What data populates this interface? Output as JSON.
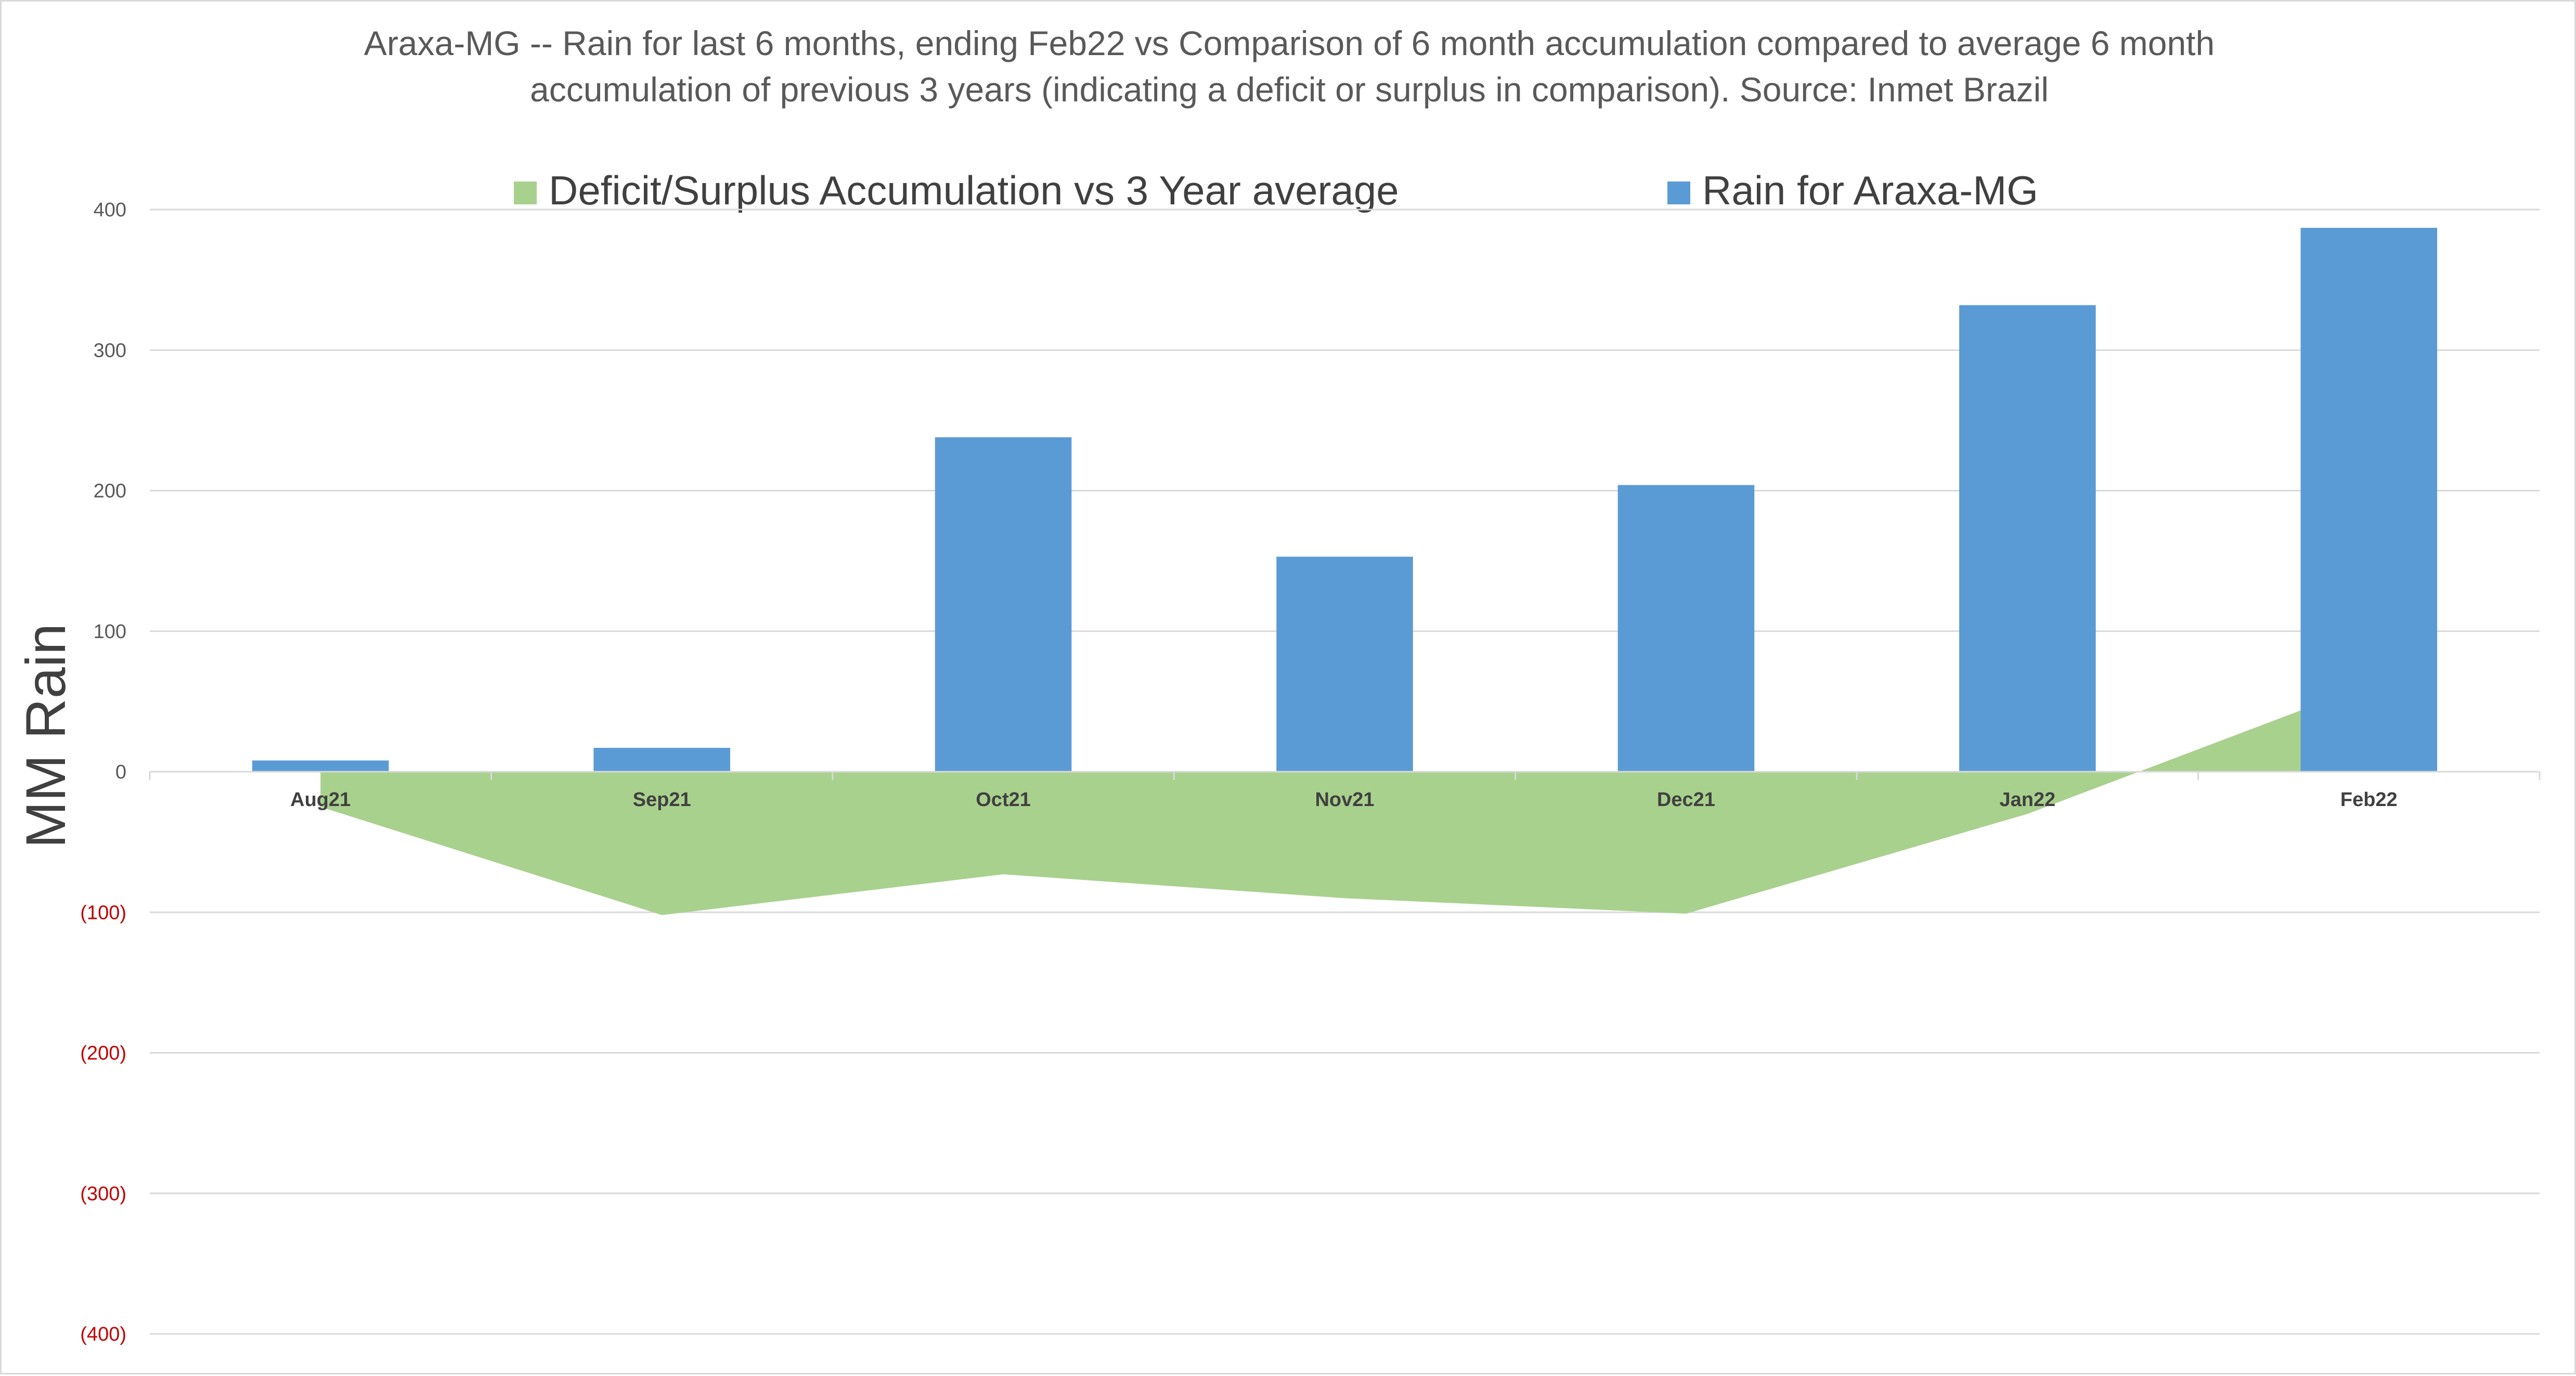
{
  "chart_data": {
    "type": "bar",
    "title_lines": [
      "Araxa-MG -- Rain for last 6 months, ending Feb22  vs Comparison of 6 month accumulation compared to average 6 month",
      "accumulation of previous 3 years  (indicating a deficit or surplus in comparison). Source: Inmet Brazil"
    ],
    "ylabel": "MM Rain",
    "xlabel": "",
    "categories": [
      "Aug21",
      "Sep21",
      "Oct21",
      "Nov21",
      "Dec21",
      "Jan22",
      "Feb22"
    ],
    "ylim": [
      -400,
      400
    ],
    "yticks": [
      400,
      300,
      200,
      100,
      0,
      -100,
      -200,
      -300,
      -400
    ],
    "ytick_labels": [
      "400",
      "300",
      "200",
      "100",
      "0",
      "(100)",
      "(200)",
      "(300)",
      "(400)"
    ],
    "grid": true,
    "legend_position": "top",
    "series": [
      {
        "name": "Deficit/Surplus Accumulation vs 3 Year average",
        "type": "area",
        "color": "#a9d18e",
        "values": [
          -25,
          -102,
          -73,
          -90,
          -101,
          -30,
          62
        ]
      },
      {
        "name": "Rain for Araxa-MG",
        "type": "bar",
        "color": "#5b9bd5",
        "values": [
          8,
          17,
          238,
          153,
          204,
          332,
          387
        ]
      }
    ],
    "colors": {
      "positive_tick": "#595959",
      "negative_tick": "#c00000",
      "gridline": "#d9d9d9"
    }
  }
}
